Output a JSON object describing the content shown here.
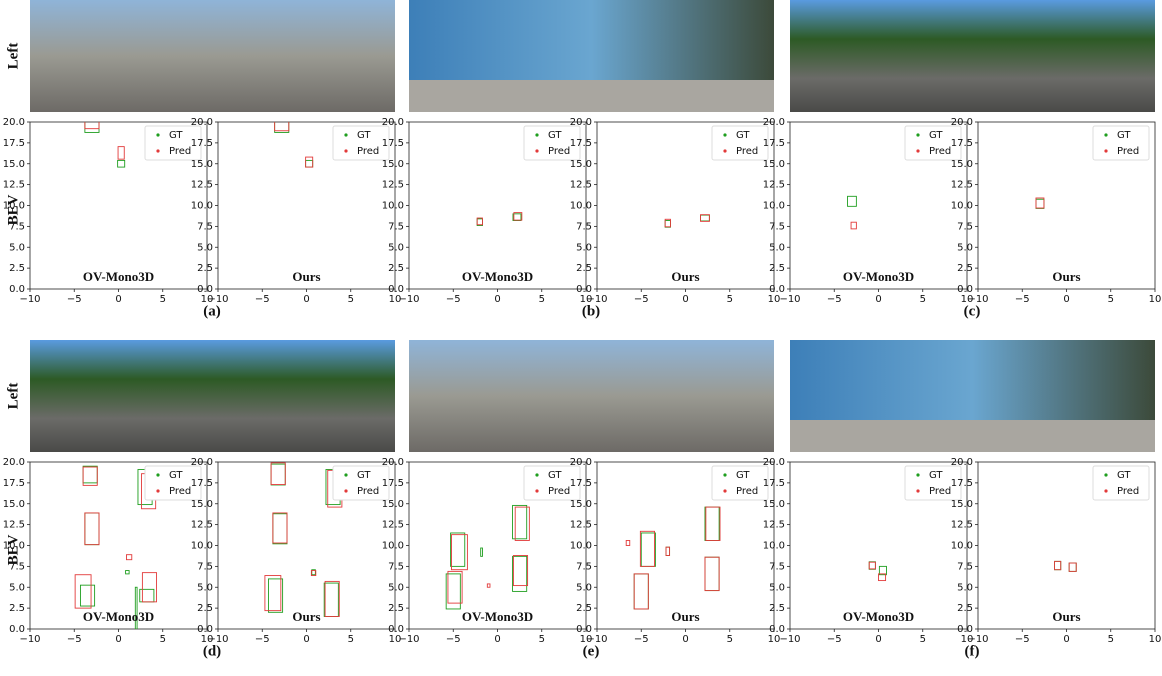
{
  "row_labels": {
    "image": "Left",
    "bev": "BEV"
  },
  "legend": {
    "gt": "GT",
    "pred": "Pred",
    "gt_color": "#1f9e1f",
    "pred_color": "#e23a3a"
  },
  "axes": {
    "xlim": [
      -10,
      10
    ],
    "ylim": [
      0,
      20
    ],
    "xticks": [
      {
        "value": -10,
        "label": "−10"
      },
      {
        "value": -5,
        "label": "−5"
      },
      0,
      5,
      10
    ],
    "yticks": [
      {
        "value": 0,
        "label": "0.0"
      },
      2.5,
      {
        "value": 5,
        "label": "5.0"
      },
      7.5,
      {
        "value": 10,
        "label": "10.0"
      },
      12.5,
      {
        "value": 15,
        "label": "15.0"
      },
      17.5,
      {
        "value": 20,
        "label": "20.0"
      }
    ]
  },
  "panels": [
    {
      "label": "(a)",
      "plots": [
        {
          "title": "OV-Mono3D",
          "gt": [
            [
              -3,
              19.5,
              1.6,
              1.5
            ],
            [
              0.3,
              15,
              0.8,
              0.8
            ]
          ],
          "pred": [
            [
              -3,
              19.8,
              1.6,
              1.2
            ],
            [
              0.3,
              16.3,
              0.7,
              1.5
            ]
          ]
        },
        {
          "title": "Ours",
          "gt": [
            [
              -2.8,
              19.5,
              1.6,
              1.5
            ],
            [
              0.3,
              15,
              0.8,
              0.8
            ]
          ],
          "pred": [
            [
              -2.8,
              19.6,
              1.6,
              1.3
            ],
            [
              0.3,
              15.2,
              0.8,
              1.2
            ]
          ]
        }
      ]
    },
    {
      "label": "(b)",
      "plots": [
        {
          "title": "OV-Mono3D",
          "gt": [
            [
              -2,
              8,
              0.6,
              0.8
            ],
            [
              2.2,
              8.6,
              0.9,
              0.8
            ]
          ],
          "pred": [
            [
              -2,
              8.1,
              0.6,
              0.8
            ],
            [
              2.3,
              8.7,
              0.9,
              0.9
            ]
          ]
        },
        {
          "title": "Ours",
          "gt": [
            [
              -2,
              7.8,
              0.6,
              0.8
            ],
            [
              2.2,
              8.5,
              1,
              0.7
            ]
          ],
          "pred": [
            [
              -2,
              7.9,
              0.6,
              0.9
            ],
            [
              2.2,
              8.5,
              1,
              0.8
            ]
          ]
        }
      ]
    },
    {
      "label": "(c)",
      "plots": [
        {
          "title": "OV-Mono3D",
          "gt": [
            [
              -3,
              10.5,
              1,
              1.2
            ]
          ],
          "pred": [
            [
              -2.8,
              7.6,
              0.6,
              0.8
            ]
          ]
        },
        {
          "title": "Ours",
          "gt": [
            [
              -3,
              10.2,
              0.9,
              1.1
            ]
          ],
          "pred": [
            [
              -3,
              10.3,
              0.9,
              1.2
            ]
          ]
        }
      ]
    },
    {
      "label": "(d)",
      "plots": [
        {
          "title": "OV-Mono3D",
          "gt": [
            [
              -3.2,
              18.5,
              1.6,
              2
            ],
            [
              3,
              17,
              1.6,
              4.2
            ],
            [
              -3,
              12,
              1.6,
              3.8
            ],
            [
              -3.5,
              4,
              1.6,
              2.5
            ],
            [
              1,
              6.8,
              0.4,
              0.4
            ],
            [
              2,
              2.5,
              0.2,
              5
            ],
            [
              3.2,
              4,
              1.6,
              1.5
            ]
          ],
          "pred": [
            [
              -3.2,
              18.3,
              1.6,
              2.2
            ],
            [
              3.4,
              16.5,
              1.6,
              4.2
            ],
            [
              -3,
              12,
              1.6,
              3.8
            ],
            [
              -4,
              4.5,
              1.8,
              4
            ],
            [
              1.2,
              8.6,
              0.6,
              0.6
            ],
            [
              3.5,
              5,
              1.6,
              3.5
            ]
          ]
        },
        {
          "title": "Ours",
          "gt": [
            [
              -3.2,
              18.5,
              1.6,
              2.5
            ],
            [
              3,
              17,
              1.6,
              4.2
            ],
            [
              -3,
              12,
              1.6,
              3.6
            ],
            [
              -3.5,
              4,
              1.6,
              4
            ],
            [
              0.8,
              6.8,
              0.4,
              0.6
            ],
            [
              2.8,
              3.5,
              1.6,
              4
            ]
          ],
          "pred": [
            [
              -3.2,
              18.6,
              1.6,
              2.6
            ],
            [
              3.2,
              16.8,
              1.6,
              4.4
            ],
            [
              -3,
              12.1,
              1.6,
              3.6
            ],
            [
              -3.8,
              4.3,
              1.8,
              4.2
            ],
            [
              0.8,
              6.7,
              0.5,
              0.6
            ],
            [
              2.9,
              3.6,
              1.6,
              4.2
            ]
          ]
        }
      ]
    },
    {
      "label": "(e)",
      "plots": [
        {
          "title": "OV-Mono3D",
          "gt": [
            [
              -4.5,
              9.5,
              1.6,
              4
            ],
            [
              -5,
              4.5,
              1.6,
              4.2
            ],
            [
              2.5,
              12.8,
              1.6,
              4
            ],
            [
              2.5,
              6.6,
              1.6,
              4.2
            ],
            [
              -1.8,
              9.2,
              0.2,
              1
            ]
          ],
          "pred": [
            [
              -4.3,
              9.2,
              1.8,
              4.2
            ],
            [
              -4.8,
              5,
              1.6,
              3.8
            ],
            [
              2.8,
              12.6,
              1.6,
              4
            ],
            [
              2.6,
              7,
              1.6,
              3.6
            ],
            [
              -1,
              5.2,
              0.3,
              0.4
            ]
          ]
        },
        {
          "title": "Ours",
          "gt": [
            [
              -4.2,
              9.5,
              1.6,
              4
            ],
            [
              -5,
              4.5,
              1.6,
              4.2
            ],
            [
              -2,
              9.3,
              0.4,
              1
            ],
            [
              3,
              12.6,
              1.6,
              4
            ],
            [
              3,
              6.6,
              1.6,
              4
            ]
          ],
          "pred": [
            [
              -6.5,
              10.3,
              0.4,
              0.6
            ],
            [
              -4.3,
              9.6,
              1.6,
              4.2
            ],
            [
              -5,
              4.5,
              1.6,
              4.2
            ],
            [
              -2,
              9.3,
              0.4,
              1
            ],
            [
              3.1,
              12.6,
              1.6,
              4
            ],
            [
              3,
              6.6,
              1.6,
              4
            ]
          ]
        }
      ]
    },
    {
      "label": "(f)",
      "plots": [
        {
          "title": "OV-Mono3D",
          "gt": [
            [
              0.5,
              7,
              0.8,
              1
            ],
            [
              -0.7,
              7.6,
              0.7,
              0.9
            ]
          ],
          "pred": [
            [
              -0.7,
              7.6,
              0.7,
              0.8
            ],
            [
              0.4,
              6.2,
              0.8,
              0.8
            ]
          ]
        },
        {
          "title": "Ours",
          "gt": [
            [
              -1,
              7.6,
              0.7,
              1
            ],
            [
              0.7,
              7.4,
              0.8,
              1
            ]
          ],
          "pred": [
            [
              -1,
              7.6,
              0.7,
              1
            ],
            [
              0.7,
              7.4,
              0.8,
              1
            ]
          ]
        }
      ]
    }
  ]
}
